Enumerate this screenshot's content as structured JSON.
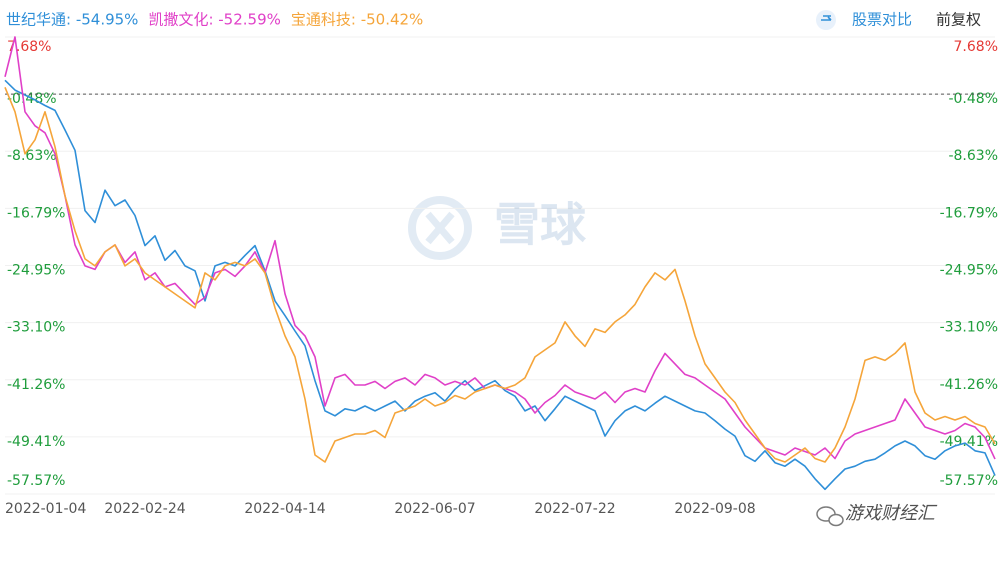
{
  "chart_data": {
    "type": "line",
    "header_right": [
      "股票对比",
      "前复权"
    ],
    "watermarks": [
      "雪球",
      "游戏财经汇"
    ],
    "categories": [
      "2022-01-04",
      null,
      null,
      null,
      null,
      null,
      null,
      null,
      null,
      null,
      null,
      null,
      null,
      null,
      "2022-02-24",
      null,
      null,
      null,
      null,
      null,
      null,
      null,
      null,
      null,
      null,
      null,
      null,
      null,
      "2022-04-14",
      null,
      null,
      null,
      null,
      null,
      null,
      null,
      null,
      null,
      null,
      null,
      null,
      null,
      null,
      "2022-06-07",
      null,
      null,
      null,
      null,
      null,
      null,
      null,
      null,
      null,
      null,
      null,
      null,
      null,
      "2022-07-22",
      null,
      null,
      null,
      null,
      null,
      null,
      null,
      null,
      null,
      null,
      null,
      null,
      null,
      "2022-09-08",
      null,
      null,
      null,
      null,
      null,
      null,
      null,
      null,
      null,
      null,
      null,
      null,
      null,
      null,
      null,
      null,
      null,
      null,
      null,
      null,
      null,
      null,
      null,
      null,
      null,
      null,
      null,
      null
    ],
    "series": [
      {
        "name": "世纪华通: -54.95%",
        "color": "#2f8fd8",
        "values": [
          1.5,
          0.1,
          -0.6,
          -1.3,
          -2.1,
          -2.8,
          -5.6,
          -8.5,
          -17.1,
          -18.8,
          -14.2,
          -16.4,
          -15.6,
          -17.8,
          -22.1,
          -20.7,
          -24.2,
          -22.8,
          -25.0,
          -25.7,
          -30.0,
          -25.0,
          -24.5,
          -25.0,
          -23.5,
          -22.1,
          -25.7,
          -30.0,
          -32.1,
          -34.3,
          -36.4,
          -41.4,
          -45.7,
          -46.4,
          -45.4,
          -45.7,
          -45.0,
          -45.7,
          -45.0,
          -44.3,
          -45.7,
          -44.3,
          -43.6,
          -43.1,
          -44.3,
          -42.6,
          -41.4,
          -42.8,
          -42.1,
          -41.4,
          -42.8,
          -43.6,
          -45.7,
          -45.0,
          -47.1,
          -45.4,
          -43.6,
          -44.3,
          -45.0,
          -45.7,
          -49.3,
          -47.1,
          -45.7,
          -45.0,
          -45.7,
          -44.6,
          -43.6,
          -44.3,
          -45.0,
          -45.7,
          -46.0,
          -47.1,
          -48.3,
          -49.3,
          -52.1,
          -52.9,
          -51.4,
          -53.1,
          -53.6,
          -52.6,
          -53.6,
          -55.4,
          -56.9,
          -55.4,
          -54.0,
          -53.6,
          -52.9,
          -52.6,
          -51.7,
          -50.7,
          -50.0,
          -50.7,
          -52.1,
          -52.6,
          -51.4,
          -50.7,
          -50.3,
          -51.4,
          -51.7,
          -54.95
        ]
      },
      {
        "name": "凯撒文化: -52.59%",
        "color": "#e040c8",
        "values": [
          2.0,
          7.68,
          -3.0,
          -5.0,
          -6.0,
          -9.0,
          -15.0,
          -22.0,
          -25.0,
          -25.5,
          -23.0,
          -22.0,
          -24.5,
          -23.0,
          -27.0,
          -26.0,
          -28.0,
          -27.5,
          -29.0,
          -30.5,
          -29.5,
          -26.0,
          -25.5,
          -26.5,
          -25.0,
          -23.0,
          -26.0,
          -21.4,
          -29.0,
          -33.5,
          -35.0,
          -38.0,
          -45.0,
          -41.0,
          -40.5,
          -42.0,
          -42.0,
          -41.5,
          -42.5,
          -41.5,
          -41.0,
          -42.0,
          -40.5,
          -41.0,
          -42.0,
          -41.5,
          -42.0,
          -41.0,
          -42.5,
          -42.0,
          -42.5,
          -43.0,
          -44.0,
          -46.0,
          -44.5,
          -43.5,
          -42.0,
          -43.0,
          -43.5,
          -44.0,
          -43.0,
          -44.5,
          -43.0,
          -42.5,
          -43.0,
          -40.0,
          -37.5,
          -39.0,
          -40.5,
          -41.0,
          -42.0,
          -43.0,
          -44.0,
          -46.0,
          -48.0,
          -49.5,
          -51.0,
          -51.5,
          -52.0,
          -51.0,
          -51.5,
          -52.0,
          -51.0,
          -52.5,
          -50.0,
          -49.0,
          -48.5,
          -48.0,
          -47.5,
          -47.0,
          -44.0,
          -46.0,
          -48.0,
          -48.5,
          -49.0,
          -48.5,
          -47.5,
          -48.0,
          -49.5,
          -52.59
        ]
      },
      {
        "name": "宝通科技: -50.42%",
        "color": "#f5a53a",
        "values": [
          0.5,
          -3.0,
          -9.0,
          -7.0,
          -3.0,
          -8.0,
          -15.0,
          -20.0,
          -24.0,
          -25.0,
          -23.0,
          -22.0,
          -25.0,
          -24.0,
          -26.0,
          -27.0,
          -28.0,
          -29.0,
          -30.0,
          -31.0,
          -26.0,
          -27.0,
          -25.0,
          -24.5,
          -25.0,
          -24.0,
          -26.0,
          -31.0,
          -35.0,
          -38.0,
          -44.0,
          -52.0,
          -53.0,
          -50.0,
          -49.5,
          -49.0,
          -49.0,
          -48.5,
          -49.5,
          -46.0,
          -45.5,
          -45.0,
          -44.0,
          -45.0,
          -44.5,
          -43.5,
          -44.0,
          -43.0,
          -42.5,
          -42.0,
          -42.5,
          -42.0,
          -41.0,
          -38.0,
          -37.0,
          -36.0,
          -33.0,
          -35.0,
          -36.5,
          -34.0,
          -34.5,
          -33.0,
          -32.0,
          -30.5,
          -28.0,
          -26.0,
          -27.0,
          -25.5,
          -30.0,
          -35.0,
          -39.0,
          -41.0,
          -43.0,
          -44.5,
          -47.0,
          -49.0,
          -51.0,
          -52.5,
          -53.0,
          -52.0,
          -51.0,
          -52.5,
          -53.0,
          -51.0,
          -48.0,
          -44.0,
          -38.5,
          -38.0,
          -38.5,
          -37.5,
          -36.0,
          -43.0,
          -46.0,
          -47.0,
          -46.5,
          -47.0,
          -46.5,
          -47.5,
          -48.0,
          -50.42
        ]
      }
    ],
    "ylim": [
      -57.57,
      7.68
    ],
    "yticks": [
      {
        "value": 7.68,
        "label": "7.68%"
      },
      {
        "value": -0.48,
        "label": "-0.48%"
      },
      {
        "value": -8.63,
        "label": "-8.63%"
      },
      {
        "value": -16.79,
        "label": "-16.79%"
      },
      {
        "value": -24.95,
        "label": "-24.95%"
      },
      {
        "value": -33.1,
        "label": "-33.10%"
      },
      {
        "value": -41.26,
        "label": "-41.26%"
      },
      {
        "value": -49.41,
        "label": "-49.41%"
      },
      {
        "value": -57.57,
        "label": "-57.57%"
      }
    ],
    "reference_line": -0.48,
    "positive_color": "#e53935",
    "negative_color": "#1f9d3c",
    "grid": true
  }
}
